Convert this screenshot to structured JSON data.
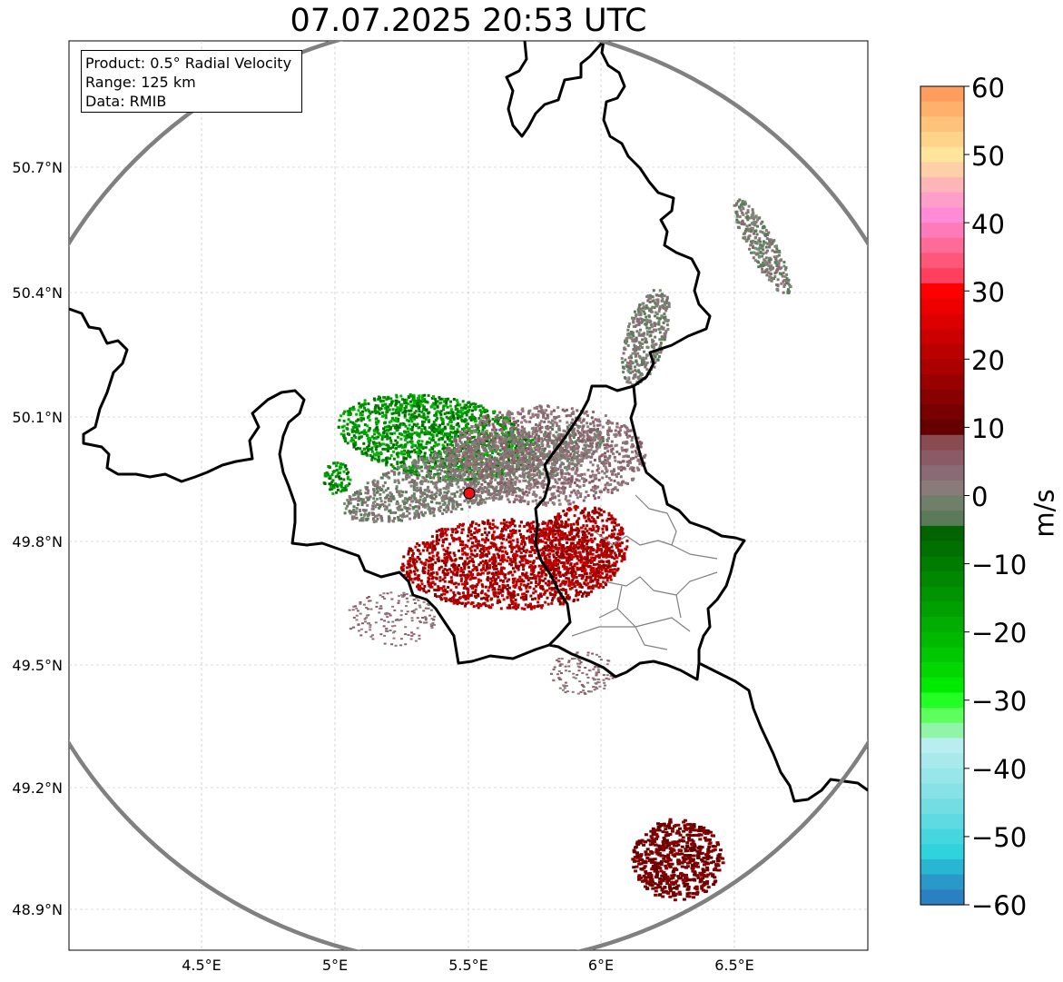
{
  "title": "07.07.2025 20:53 UTC",
  "info_box": {
    "product": "Product: 0.5° Radial Velocity",
    "range": "Range: 125 km",
    "data": "Data: RMIB"
  },
  "axes": {
    "lat_labels": [
      "50.7°N",
      "50.4°N",
      "50.1°N",
      "49.8°N",
      "49.5°N",
      "49.2°N",
      "48.9°N"
    ],
    "lon_labels": [
      "4.5°E",
      "5°E",
      "5.5°E",
      "6°E",
      "6.5°E"
    ]
  },
  "colorbar": {
    "unit": "m/s",
    "tick_labels": [
      "60",
      "50",
      "40",
      "30",
      "20",
      "10",
      "0",
      "−10",
      "−20",
      "−30",
      "−40",
      "−50",
      "−60"
    ],
    "colors": [
      "#ff9d5c",
      "#ffb06b",
      "#ffc27a",
      "#ffd48a",
      "#ffe59c",
      "#ffcfa8",
      "#ffb4b8",
      "#ff9ec9",
      "#ff8ad6",
      "#ff7ab8",
      "#ff6a99",
      "#ff577a",
      "#ff3f5e",
      "#ff0000",
      "#ee0000",
      "#dd0000",
      "#cc0000",
      "#bb0000",
      "#aa0000",
      "#990000",
      "#880000",
      "#770000",
      "#660000",
      "#8a4a52",
      "#8a5a66",
      "#8a6a74",
      "#8a7a7a",
      "#6f7f6a",
      "#5a7a5a",
      "#006400",
      "#007000",
      "#007c00",
      "#008800",
      "#009400",
      "#00a000",
      "#00ad00",
      "#00ba00",
      "#00c800",
      "#00d800",
      "#00ea00",
      "#22ff22",
      "#5cff5c",
      "#90f5a8",
      "#b8eef0",
      "#a8eaec",
      "#98e6ea",
      "#86e2e6",
      "#72dee4",
      "#5edae2",
      "#46d6e0",
      "#30d2de",
      "#28b6d2",
      "#2a98c8",
      "#2a80c0"
    ]
  },
  "radar": {
    "site_lon": 5.505,
    "site_lat": 49.915,
    "range_km": 125
  },
  "colors": {
    "border": "#000000",
    "subborder": "#808080",
    "range_ring": "#808080",
    "site_marker": "#ee1111"
  }
}
